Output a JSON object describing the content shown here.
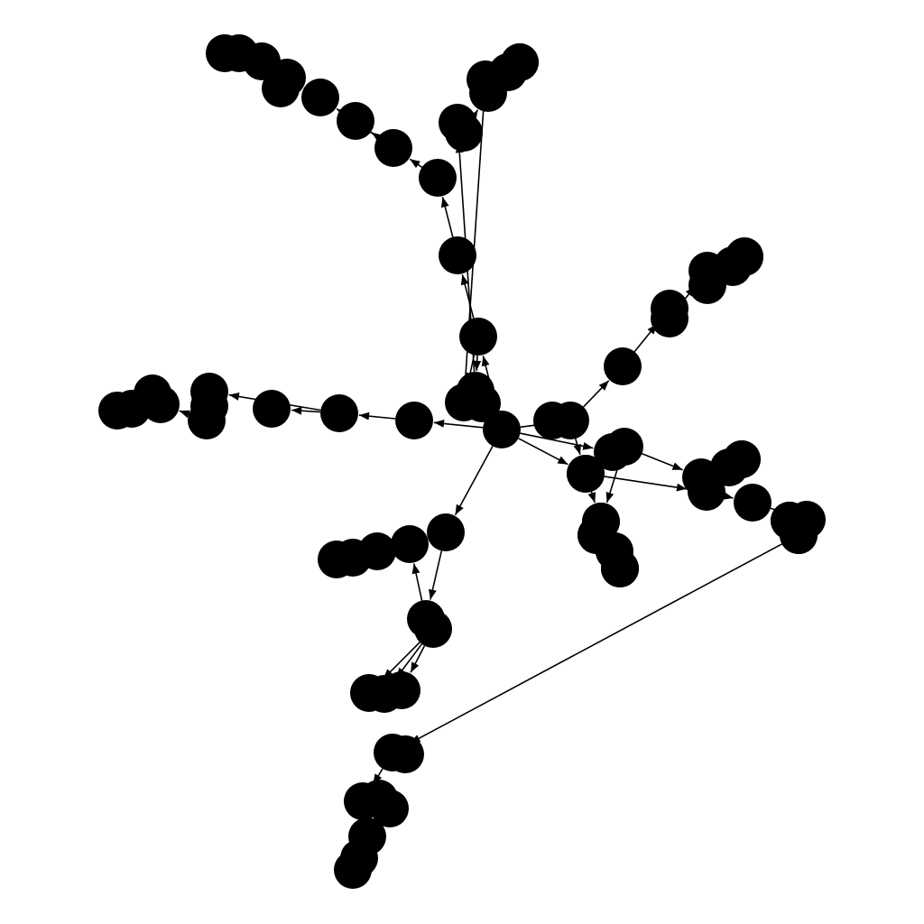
{
  "graph": {
    "type": "directed-tree",
    "node_count": 77,
    "edge_count": 76,
    "root": "n0",
    "node_color": "#000000",
    "edge_color": "#000000",
    "background": "#ffffff",
    "labels_shown": false,
    "nodes": [
      "n0",
      "n1",
      "n2",
      "n3",
      "n4",
      "n5",
      "n6",
      "n7",
      "n8",
      "n9",
      "n10",
      "n11",
      "n12",
      "n13",
      "n14",
      "n15",
      "n16",
      "n17",
      "n18",
      "n19",
      "n20",
      "n21",
      "n22",
      "n23",
      "n24",
      "n25",
      "n26",
      "n27",
      "n28",
      "n29",
      "n30",
      "n31",
      "n32",
      "n33",
      "n34",
      "n35",
      "n36",
      "n37",
      "n38",
      "n39",
      "n40",
      "n41",
      "n42",
      "n43",
      "n44",
      "n45",
      "n46",
      "n47",
      "n48",
      "n49",
      "n50",
      "n51",
      "n52",
      "n53",
      "n54",
      "n55",
      "n56",
      "n57",
      "n58",
      "n59",
      "n60",
      "n61",
      "n62",
      "n63",
      "n64",
      "n65",
      "n66",
      "n67",
      "n68",
      "n69",
      "n70",
      "n71",
      "n72",
      "n73",
      "n74",
      "n75",
      "n76"
    ],
    "edges": [
      [
        "n0",
        "n1"
      ],
      [
        "n0",
        "n2"
      ],
      [
        "n0",
        "n3"
      ],
      [
        "n0",
        "n4"
      ],
      [
        "n0",
        "n5"
      ],
      [
        "n0",
        "n6"
      ],
      [
        "n1",
        "n7"
      ],
      [
        "n1",
        "n8"
      ],
      [
        "n2",
        "n9"
      ],
      [
        "n2",
        "n10"
      ],
      [
        "n2",
        "n11"
      ],
      [
        "n3",
        "n12"
      ],
      [
        "n4",
        "n13"
      ],
      [
        "n13",
        "n14"
      ],
      [
        "n14",
        "n15"
      ],
      [
        "n14",
        "n16"
      ],
      [
        "n14",
        "n17"
      ],
      [
        "n5",
        "n18"
      ],
      [
        "n18",
        "n19"
      ],
      [
        "n18",
        "n20"
      ],
      [
        "n20",
        "n21"
      ],
      [
        "n20",
        "n22"
      ],
      [
        "n20",
        "n23"
      ],
      [
        "n6",
        "n24"
      ],
      [
        "n24",
        "n25"
      ],
      [
        "n25",
        "n26"
      ],
      [
        "n26",
        "n27"
      ],
      [
        "n7",
        "n28"
      ],
      [
        "n28",
        "n29"
      ],
      [
        "n29",
        "n30"
      ],
      [
        "n30",
        "n31"
      ],
      [
        "n31",
        "n32"
      ],
      [
        "n31",
        "n33"
      ],
      [
        "n33",
        "n34"
      ],
      [
        "n34",
        "n35"
      ],
      [
        "n8",
        "n36"
      ],
      [
        "n36",
        "n37"
      ],
      [
        "n37",
        "n38"
      ],
      [
        "n38",
        "n39"
      ],
      [
        "n38",
        "n40"
      ],
      [
        "n9",
        "n41"
      ],
      [
        "n41",
        "n42"
      ],
      [
        "n42",
        "n43"
      ],
      [
        "n42",
        "n44"
      ],
      [
        "n44",
        "n45"
      ],
      [
        "n10",
        "n46"
      ],
      [
        "n46",
        "n47"
      ],
      [
        "n47",
        "n48"
      ],
      [
        "n11",
        "n49"
      ],
      [
        "n11",
        "n50"
      ],
      [
        "n50",
        "n51"
      ],
      [
        "n51",
        "n52"
      ],
      [
        "n52",
        "n53"
      ],
      [
        "n52",
        "n54"
      ],
      [
        "n12",
        "n55"
      ],
      [
        "n12",
        "n56"
      ],
      [
        "n56",
        "n57"
      ],
      [
        "n57",
        "n58"
      ],
      [
        "n13",
        "n59"
      ],
      [
        "n59",
        "n60"
      ],
      [
        "n60",
        "n61"
      ],
      [
        "n61",
        "n62"
      ],
      [
        "n19",
        "n63"
      ],
      [
        "n63",
        "n64"
      ],
      [
        "n64",
        "n65"
      ],
      [
        "n25",
        "n66"
      ],
      [
        "n66",
        "n67"
      ],
      [
        "n67",
        "n68"
      ],
      [
        "n68",
        "n69"
      ],
      [
        "n68",
        "n70"
      ],
      [
        "n70",
        "n71"
      ],
      [
        "n71",
        "n72"
      ],
      [
        "n71",
        "n73"
      ],
      [
        "n73",
        "n74"
      ],
      [
        "n74",
        "n75"
      ],
      [
        "n75",
        "n76"
      ]
    ]
  }
}
